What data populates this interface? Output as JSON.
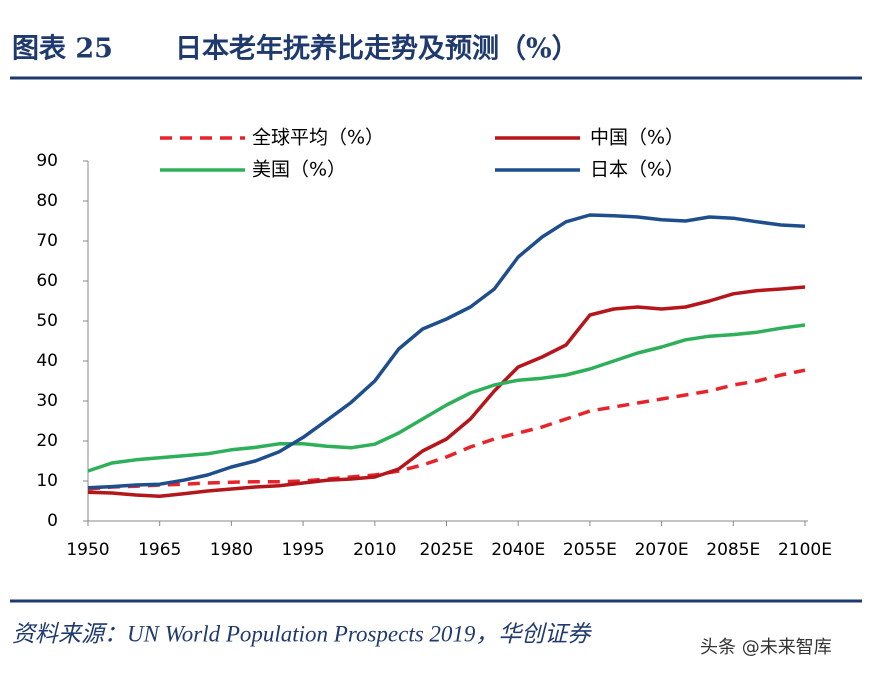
{
  "chart_data": {
    "type": "line",
    "figure_label": "图表 25",
    "title": "日本老年抚养比走势及预测（%）",
    "source": "资料来源：UN World Population Prospects 2019，华创证券",
    "watermark": "头条 @未来智库",
    "categories": [
      "1950",
      null,
      null,
      "1965",
      null,
      null,
      "1980",
      null,
      null,
      "1995",
      null,
      null,
      "2010",
      null,
      null,
      "2025E",
      null,
      null,
      "2040E",
      null,
      null,
      "2055E",
      null,
      null,
      "2070E",
      null,
      null,
      "2085E",
      null,
      null,
      "2100E"
    ],
    "series": [
      {
        "name": "全球平均（%）",
        "color": "#e8242b",
        "dashed": true,
        "values": [
          8,
          8.5,
          8.7,
          9,
          9.2,
          9.5,
          9.7,
          9.8,
          9.8,
          10,
          10.5,
          11,
          11.5,
          12.5,
          14,
          16,
          18.5,
          20.5,
          22,
          23.5,
          25.5,
          27.5,
          28.5,
          29.5,
          30.5,
          31.5,
          32.5,
          34,
          35,
          36.5,
          37.7
        ]
      },
      {
        "name": "中国（%）",
        "color": "#b5161c",
        "dashed": false,
        "values": [
          7.2,
          7,
          6.5,
          6.2,
          6.8,
          7.5,
          8,
          8.5,
          8.8,
          9.5,
          10.2,
          10.5,
          11,
          13,
          17.5,
          20.5,
          25.5,
          32.5,
          38.5,
          41,
          44,
          51.5,
          53,
          53.5,
          53,
          53.5,
          55,
          56.8,
          57.6,
          58,
          58.5
        ]
      },
      {
        "name": "美国（%）",
        "color": "#2eb05a",
        "dashed": false,
        "values": [
          12.5,
          14.5,
          15.3,
          15.8,
          16.3,
          16.8,
          17.8,
          18.4,
          19.3,
          19.3,
          18.7,
          18.3,
          19.2,
          22,
          25.5,
          29,
          32,
          34,
          35.2,
          35.7,
          36.5,
          38,
          40,
          42,
          43.5,
          45.3,
          46.2,
          46.6,
          47.2,
          48.2,
          49
        ]
      },
      {
        "name": "日本（%）",
        "color": "#1f4e8c",
        "dashed": false,
        "values": [
          8.3,
          8.6,
          9,
          9.2,
          10.2,
          11.5,
          13.5,
          15,
          17.3,
          20.9,
          25.2,
          29.6,
          35,
          43,
          48,
          50.5,
          53.5,
          58,
          66,
          71,
          74.8,
          76.5,
          76.3,
          76,
          75.3,
          75,
          76,
          75.7,
          74.8,
          74,
          73.7
        ]
      }
    ],
    "ylim": [
      0,
      90
    ],
    "yticks": [
      0,
      10,
      20,
      30,
      40,
      50,
      60,
      70,
      80,
      90
    ],
    "grid": false
  }
}
